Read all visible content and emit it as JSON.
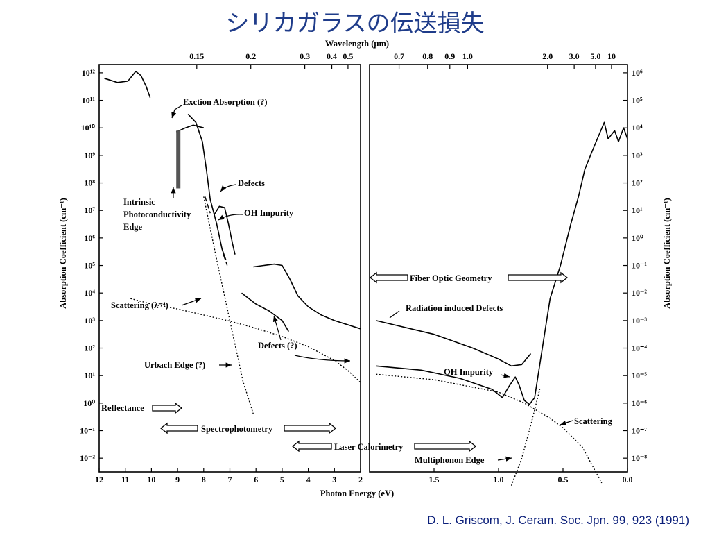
{
  "slide": {
    "title": "シリカガラスの伝送損失",
    "citation": "D. L. Griscom, J. Ceram. Soc. Jpn. 99, 923 (1991)"
  },
  "chart_data": {
    "type": "line",
    "title": "",
    "x_top_label": "Wavelength (μm)",
    "xlabel": "Photon Energy (eV)",
    "ylabel_left": "Absorption Coefficient (cm⁻¹)",
    "ylabel_right": "Absorption Coefficient (cm⁻¹)",
    "left_panel": {
      "x_range_eV": [
        12,
        2
      ],
      "x_ticks": [
        "12",
        "11",
        "10",
        "9",
        "8",
        "7",
        "6",
        "5",
        "4",
        "3",
        "2"
      ],
      "y_range_log10": [
        -2.5,
        12.3
      ],
      "y_ticks": [
        "10¹²",
        "10¹¹",
        "10¹⁰",
        "10⁹",
        "10⁸",
        "10⁷",
        "10⁶",
        "10⁵",
        "10⁴",
        "10³",
        "10²",
        "10¹",
        "10⁰",
        "10⁻¹",
        "10⁻²"
      ],
      "top_ticks": [
        "0.15",
        "0.2",
        "0.3",
        "0.4",
        "0.5"
      ]
    },
    "right_panel": {
      "x_range_eV": [
        2,
        0
      ],
      "x_ticks": [
        "1.5",
        "1.0",
        "0.5",
        "0.0"
      ],
      "y_range_log10": [
        -8.5,
        6.3
      ],
      "y_ticks": [
        "10⁶",
        "10⁵",
        "10⁴",
        "10³",
        "10²",
        "10¹",
        "10⁰",
        "10⁻¹",
        "10⁻²",
        "10⁻³",
        "10⁻⁴",
        "10⁻⁵",
        "10⁻⁶",
        "10⁻⁷",
        "10⁻⁸"
      ],
      "top_ticks": [
        "0.7",
        "0.8",
        "0.9",
        "1.0",
        "2.0",
        "3.0",
        "5.0",
        "10"
      ]
    },
    "series": [
      {
        "panel": "left",
        "style": "solid",
        "points": [
          [
            11.8,
            11.8
          ],
          [
            11.3,
            11.65
          ],
          [
            10.9,
            11.7
          ],
          [
            10.6,
            12.05
          ],
          [
            10.4,
            11.9
          ],
          [
            10.2,
            11.5
          ],
          [
            10.05,
            11.1
          ]
        ]
      },
      {
        "panel": "left",
        "style": "solid",
        "points": [
          [
            8.6,
            10.5
          ],
          [
            8.3,
            10.2
          ],
          [
            8.05,
            9.5
          ],
          [
            7.9,
            8.5
          ],
          [
            7.75,
            7.4
          ],
          [
            7.5,
            6.5
          ],
          [
            7.3,
            5.6
          ],
          [
            7.15,
            5.2
          ]
        ]
      },
      {
        "panel": "left",
        "style": "solid",
        "points": [
          [
            9.05,
            9.85
          ],
          [
            8.7,
            10.0
          ],
          [
            8.4,
            10.1
          ],
          [
            8.0,
            10.0
          ]
        ]
      },
      {
        "panel": "left",
        "style": "solid",
        "points": [
          [
            7.6,
            6.85
          ],
          [
            7.4,
            7.15
          ],
          [
            7.2,
            7.1
          ],
          [
            7.05,
            6.5
          ],
          [
            6.9,
            5.8
          ],
          [
            6.8,
            5.4
          ]
        ]
      },
      {
        "panel": "left",
        "style": "dashed",
        "points": [
          [
            7.95,
            7.5
          ],
          [
            7.85,
            7.2
          ],
          [
            7.75,
            6.9
          ]
        ]
      },
      {
        "panel": "left",
        "style": "dashed",
        "points": [
          [
            7.25,
            5.4
          ],
          [
            7.1,
            5.0
          ]
        ]
      },
      {
        "panel": "left",
        "style": "solid",
        "points": [
          [
            6.1,
            4.95
          ],
          [
            5.7,
            5.0
          ],
          [
            5.3,
            5.05
          ],
          [
            5.0,
            5.0
          ],
          [
            4.7,
            4.5
          ],
          [
            4.4,
            3.9
          ],
          [
            4.0,
            3.5
          ],
          [
            3.5,
            3.2
          ],
          [
            3.0,
            3.0
          ],
          [
            2.5,
            2.85
          ],
          [
            2.0,
            2.7
          ]
        ]
      },
      {
        "panel": "left",
        "style": "solid",
        "points": [
          [
            6.55,
            4.0
          ],
          [
            6.0,
            3.6
          ],
          [
            5.5,
            3.35
          ],
          [
            5.0,
            3.0
          ],
          [
            4.75,
            2.6
          ]
        ]
      },
      {
        "panel": "left",
        "style": "dotted",
        "points": [
          [
            10.8,
            3.8
          ],
          [
            10,
            3.6
          ],
          [
            9,
            3.42
          ],
          [
            8,
            3.2
          ],
          [
            7,
            2.98
          ],
          [
            6,
            2.72
          ],
          [
            5,
            2.42
          ],
          [
            4,
            2.05
          ],
          [
            3,
            1.55
          ],
          [
            2.5,
            1.2
          ],
          [
            2.0,
            0.75
          ]
        ]
      },
      {
        "panel": "left",
        "style": "dotted",
        "points": [
          [
            8.0,
            7.5
          ],
          [
            7.5,
            5.2
          ],
          [
            7.0,
            3.0
          ],
          [
            6.5,
            0.8
          ],
          [
            6.1,
            -0.4
          ]
        ]
      },
      {
        "panel": "right",
        "style": "solid",
        "points": [
          [
            1.95,
            -3.0
          ],
          [
            1.5,
            -3.5
          ],
          [
            1.2,
            -4.0
          ],
          [
            1.0,
            -4.4
          ],
          [
            0.9,
            -4.65
          ],
          [
            0.82,
            -4.6
          ],
          [
            0.75,
            -4.2
          ]
        ]
      },
      {
        "panel": "right",
        "style": "solid",
        "points": [
          [
            1.95,
            -4.65
          ],
          [
            1.6,
            -4.8
          ],
          [
            1.3,
            -5.1
          ],
          [
            1.05,
            -5.5
          ],
          [
            0.97,
            -5.8
          ],
          [
            0.92,
            -5.4
          ],
          [
            0.87,
            -5.05
          ],
          [
            0.84,
            -5.35
          ],
          [
            0.8,
            -5.9
          ],
          [
            0.76,
            -6.05
          ],
          [
            0.72,
            -5.8
          ],
          [
            0.66,
            -4.0
          ],
          [
            0.6,
            -2.2
          ],
          [
            0.52,
            -1.0
          ],
          [
            0.44,
            0.5
          ],
          [
            0.38,
            1.5
          ],
          [
            0.33,
            2.5
          ],
          [
            0.27,
            3.2
          ],
          [
            0.18,
            4.2
          ],
          [
            0.15,
            3.6
          ],
          [
            0.1,
            3.9
          ],
          [
            0.07,
            3.5
          ],
          [
            0.03,
            4.0
          ],
          [
            0.0,
            3.6
          ]
        ]
      },
      {
        "panel": "right",
        "style": "dotted",
        "points": [
          [
            1.95,
            -4.95
          ],
          [
            1.5,
            -5.15
          ],
          [
            1.0,
            -5.6
          ],
          [
            0.8,
            -6.0
          ],
          [
            0.6,
            -6.55
          ],
          [
            0.5,
            -6.9
          ],
          [
            0.35,
            -7.6
          ],
          [
            0.2,
            -8.9
          ]
        ]
      },
      {
        "panel": "right",
        "style": "dotted",
        "points": [
          [
            0.9,
            -9.0
          ],
          [
            0.82,
            -8.0
          ],
          [
            0.75,
            -6.8
          ],
          [
            0.68,
            -5.5
          ]
        ]
      }
    ],
    "annotations": [
      "Exction Absorption (?)",
      "Defects",
      "Intrinsic",
      "Photoconductivity",
      "Edge",
      "OH Impurity",
      "Scattering (λ⁻⁴)",
      "Defects (?)",
      "Urbach Edge (?)",
      "Reflectance",
      "Spectrophotometry",
      "Laser Calorimetry",
      "Fiber Optic Geometry",
      "Radiation induced Defects",
      "OH Impurity",
      "Scattering",
      "Multiphonon Edge"
    ]
  }
}
